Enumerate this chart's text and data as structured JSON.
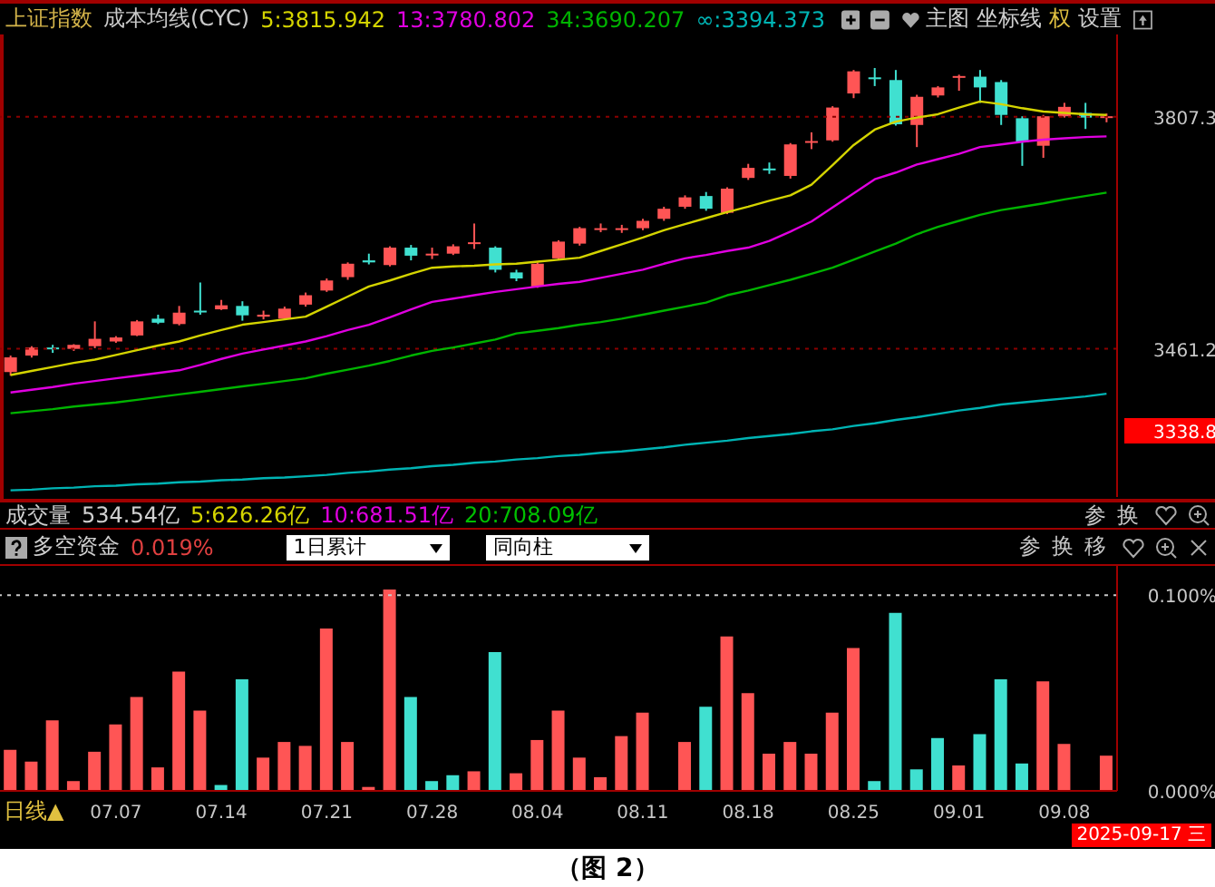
{
  "chart_data": [
    {
      "type": "candlestick",
      "title": "上证指数",
      "subtitle": "成本均线(CYC)",
      "categories": [
        null,
        null,
        null,
        null,
        null,
        "07.07",
        null,
        null,
        null,
        null,
        "07.14",
        null,
        null,
        null,
        null,
        "07.21",
        null,
        null,
        null,
        null,
        "07.28",
        null,
        null,
        null,
        null,
        "08.04",
        null,
        null,
        null,
        null,
        "08.11",
        null,
        null,
        null,
        null,
        "08.18",
        null,
        null,
        null,
        null,
        "08.25",
        null,
        null,
        null,
        null,
        "09.01",
        null,
        null,
        null,
        null,
        "09.08",
        null,
        null
      ],
      "ohlc": [
        [
          3426.4,
          3451,
          3421,
          3448.3
        ],
        [
          3451,
          3465,
          3448,
          3463
        ],
        [
          3463,
          3467,
          3455,
          3461
        ],
        [
          3461,
          3468,
          3458,
          3467
        ],
        [
          3465,
          3502,
          3462,
          3476
        ],
        [
          3472,
          3480,
          3470,
          3478
        ],
        [
          3481,
          3504,
          3480,
          3502
        ],
        [
          3506,
          3512,
          3498,
          3500
        ],
        [
          3498,
          3525,
          3496,
          3515
        ],
        [
          3518,
          3560,
          3512,
          3516
        ],
        [
          3520,
          3534,
          3519,
          3526
        ],
        [
          3525,
          3532,
          3503,
          3511
        ],
        [
          3509,
          3518,
          3505,
          3512
        ],
        [
          3506,
          3524,
          3504,
          3521
        ],
        [
          3527,
          3545,
          3524,
          3541
        ],
        [
          3548,
          3566,
          3546,
          3563
        ],
        [
          3568,
          3590,
          3564,
          3588
        ],
        [
          3593,
          3603,
          3587,
          3590
        ],
        [
          3586,
          3614,
          3584,
          3612
        ],
        [
          3612,
          3616,
          3593,
          3600
        ],
        [
          3601,
          3612,
          3595,
          3603
        ],
        [
          3603,
          3617,
          3601,
          3614
        ],
        [
          3618,
          3648,
          3610,
          3620
        ],
        [
          3612,
          3614,
          3575,
          3579
        ],
        [
          3575,
          3579,
          3562,
          3566
        ],
        [
          3554,
          3590,
          3552,
          3588
        ],
        [
          3596,
          3623,
          3594,
          3621
        ],
        [
          3618,
          3643,
          3615,
          3641
        ],
        [
          3639,
          3648,
          3635,
          3641
        ],
        [
          3639,
          3646,
          3634,
          3641
        ],
        [
          3641,
          3655,
          3638,
          3652
        ],
        [
          3655,
          3673,
          3652,
          3670
        ],
        [
          3673,
          3690,
          3670,
          3687
        ],
        [
          3689,
          3695,
          3667,
          3670
        ],
        [
          3664,
          3702,
          3662,
          3700
        ],
        [
          3716,
          3737,
          3713,
          3731
        ],
        [
          3730,
          3739,
          3722,
          3728
        ],
        [
          3719,
          3768,
          3715,
          3766
        ],
        [
          3769,
          3784,
          3759,
          3771
        ],
        [
          3772,
          3823,
          3770,
          3821
        ],
        [
          3842,
          3877,
          3835,
          3875
        ],
        [
          3866,
          3880,
          3853,
          3864
        ],
        [
          3862,
          3877,
          3794,
          3796
        ],
        [
          3795,
          3840,
          3762,
          3837
        ],
        [
          3839,
          3853,
          3836,
          3851
        ],
        [
          3867,
          3870,
          3846,
          3868
        ],
        [
          3867,
          3877,
          3828,
          3851
        ],
        [
          3859,
          3862,
          3795,
          3810
        ],
        [
          3805,
          3808,
          3734,
          3769
        ],
        [
          3764,
          3810,
          3746,
          3808
        ],
        [
          3808,
          3828,
          3806,
          3822
        ],
        [
          3813,
          3828,
          3789,
          3806
        ],
        [
          3806,
          3812,
          3799,
          3808
        ]
      ],
      "series": [
        {
          "name": "5:3815.942",
          "type": "line",
          "color": "#d4d400",
          "values": [
            3422,
            3428,
            3434,
            3440,
            3445,
            3452,
            3459,
            3466,
            3472,
            3481,
            3489,
            3497,
            3501,
            3505,
            3509,
            3524,
            3539,
            3554,
            3563,
            3573,
            3582,
            3584,
            3585,
            3587,
            3588,
            3591,
            3594,
            3597,
            3607,
            3617,
            3627,
            3638,
            3647,
            3656,
            3665,
            3673,
            3682,
            3690,
            3706,
            3735,
            3765,
            3788,
            3800,
            3806,
            3811,
            3821,
            3830,
            3826,
            3820,
            3815,
            3813,
            3811,
            3810
          ]
        },
        {
          "name": "13:3780.802",
          "type": "line",
          "color": "#e000e0",
          "values": [
            3396,
            3400,
            3404,
            3409,
            3413,
            3417,
            3421,
            3425,
            3429,
            3437,
            3446,
            3454,
            3460,
            3466,
            3472,
            3480,
            3489,
            3497,
            3508,
            3520,
            3531,
            3536,
            3541,
            3546,
            3550,
            3554,
            3558,
            3561,
            3567,
            3573,
            3579,
            3588,
            3596,
            3601,
            3607,
            3612,
            3622,
            3636,
            3651,
            3672,
            3693,
            3714,
            3724,
            3736,
            3744,
            3752,
            3762,
            3766,
            3770,
            3773,
            3775,
            3777,
            3778
          ]
        },
        {
          "name": "34:3690.207",
          "type": "line",
          "color": "#00b400",
          "values": [
            3365,
            3368,
            3371,
            3375,
            3378,
            3381,
            3385,
            3389,
            3393,
            3397,
            3401,
            3405,
            3409,
            3413,
            3417,
            3424,
            3430,
            3436,
            3443,
            3451,
            3458,
            3463,
            3469,
            3475,
            3484,
            3488,
            3492,
            3497,
            3501,
            3506,
            3512,
            3518,
            3524,
            3530,
            3541,
            3548,
            3556,
            3564,
            3573,
            3582,
            3594,
            3606,
            3618,
            3632,
            3643,
            3652,
            3661,
            3668,
            3673,
            3678,
            3684,
            3689,
            3694
          ]
        },
        {
          "name": "∞:3394.373",
          "type": "line",
          "color": "#00b4b4",
          "values": [
            3250,
            3251,
            3253,
            3254,
            3256,
            3257,
            3259,
            3260,
            3262,
            3263,
            3265,
            3266,
            3268,
            3269,
            3271,
            3273,
            3276,
            3278,
            3281,
            3283,
            3286,
            3288,
            3291,
            3293,
            3296,
            3298,
            3301,
            3303,
            3306,
            3308,
            3311,
            3314,
            3318,
            3321,
            3324,
            3328,
            3331,
            3334,
            3338,
            3341,
            3346,
            3350,
            3355,
            3359,
            3364,
            3369,
            3373,
            3378,
            3381,
            3384,
            3387,
            3390,
            3394
          ]
        }
      ],
      "ylim": [
        3240,
        3930
      ],
      "yticks": [
        3807.3,
        3461.2,
        3338.8
      ],
      "ref_lines": [
        {
          "axis": "y",
          "value": 3807.3,
          "color": "#8b0000",
          "line_style": "dotted"
        },
        {
          "axis": "y",
          "value": 3461.2,
          "color": "#8b0000",
          "line_style": "dotted"
        }
      ],
      "legend": "top left",
      "tick_labels": "y",
      "marker": "none",
      "line_style": "solid",
      "annotations": [
        "主图",
        "坐标线",
        "权",
        "设置"
      ]
    },
    {
      "type": "bar",
      "title": "多空资金",
      "subtitle": "0.019%",
      "categories": [
        null,
        null,
        null,
        null,
        null,
        "07.07",
        null,
        null,
        null,
        null,
        "07.14",
        null,
        null,
        null,
        null,
        "07.21",
        null,
        null,
        null,
        null,
        "07.28",
        null,
        null,
        null,
        null,
        "08.04",
        null,
        null,
        null,
        null,
        "08.11",
        null,
        null,
        null,
        null,
        "08.18",
        null,
        null,
        null,
        null,
        "08.25",
        null,
        null,
        null,
        null,
        "09.01",
        null,
        null,
        null,
        null,
        "09.08",
        null,
        null
      ],
      "values": [
        0.021,
        0.015,
        0.036,
        0.005,
        0.02,
        0.034,
        0.048,
        0.012,
        0.061,
        0.041,
        0.003,
        0.057,
        0.017,
        0.025,
        0.023,
        0.083,
        0.025,
        0.002,
        0.103,
        0.048,
        0.005,
        0.008,
        0.01,
        0.071,
        0.009,
        0.026,
        0.041,
        0.017,
        0.007,
        0.028,
        0.04,
        null,
        0.025,
        0.043,
        0.079,
        0.05,
        0.019,
        0.025,
        0.019,
        0.04,
        0.073,
        0.005,
        0.091,
        0.011,
        0.027,
        0.013,
        0.029,
        0.057,
        0.014,
        0.056,
        0.024,
        null,
        0.018
      ],
      "colors": [
        "#ff5555",
        "#ff5555",
        "#ff5555",
        "#ff5555",
        "#ff5555",
        "#ff5555",
        "#ff5555",
        "#ff5555",
        "#ff5555",
        "#ff5555",
        "#40e0d0",
        "#40e0d0",
        "#ff5555",
        "#ff5555",
        "#ff5555",
        "#ff5555",
        "#ff5555",
        "#ff5555",
        "#ff5555",
        "#40e0d0",
        "#40e0d0",
        "#40e0d0",
        "#ff5555",
        "#40e0d0",
        "#ff5555",
        "#ff5555",
        "#ff5555",
        "#ff5555",
        "#ff5555",
        "#ff5555",
        "#ff5555",
        null,
        "#ff5555",
        "#40e0d0",
        "#ff5555",
        "#ff5555",
        "#ff5555",
        "#ff5555",
        "#ff5555",
        "#ff5555",
        "#ff5555",
        "#40e0d0",
        "#40e0d0",
        "#40e0d0",
        "#40e0d0",
        "#ff5555",
        "#40e0d0",
        "#40e0d0",
        "#40e0d0",
        "#ff5555",
        "#ff5555",
        null,
        "#ff5555"
      ],
      "ylim": [
        0,
        0.115
      ],
      "yticks": [
        {
          "value": 0.1,
          "label": "0.100%"
        },
        {
          "value": 0,
          "label": "0.000%"
        }
      ],
      "ref_lines": [
        {
          "axis": "y",
          "value": 0.1,
          "color": "#c8c8c8",
          "line_style": "dotted"
        }
      ],
      "annotations": [
        "成交量",
        "534.54亿",
        "5:626.26亿",
        "10:681.51亿",
        "20:708.09亿",
        "参",
        "换",
        "1日累计",
        "同向柱",
        "参",
        "换",
        "移",
        "日线▲",
        "2025-09-17 三",
        "（图 2）"
      ]
    }
  ]
}
